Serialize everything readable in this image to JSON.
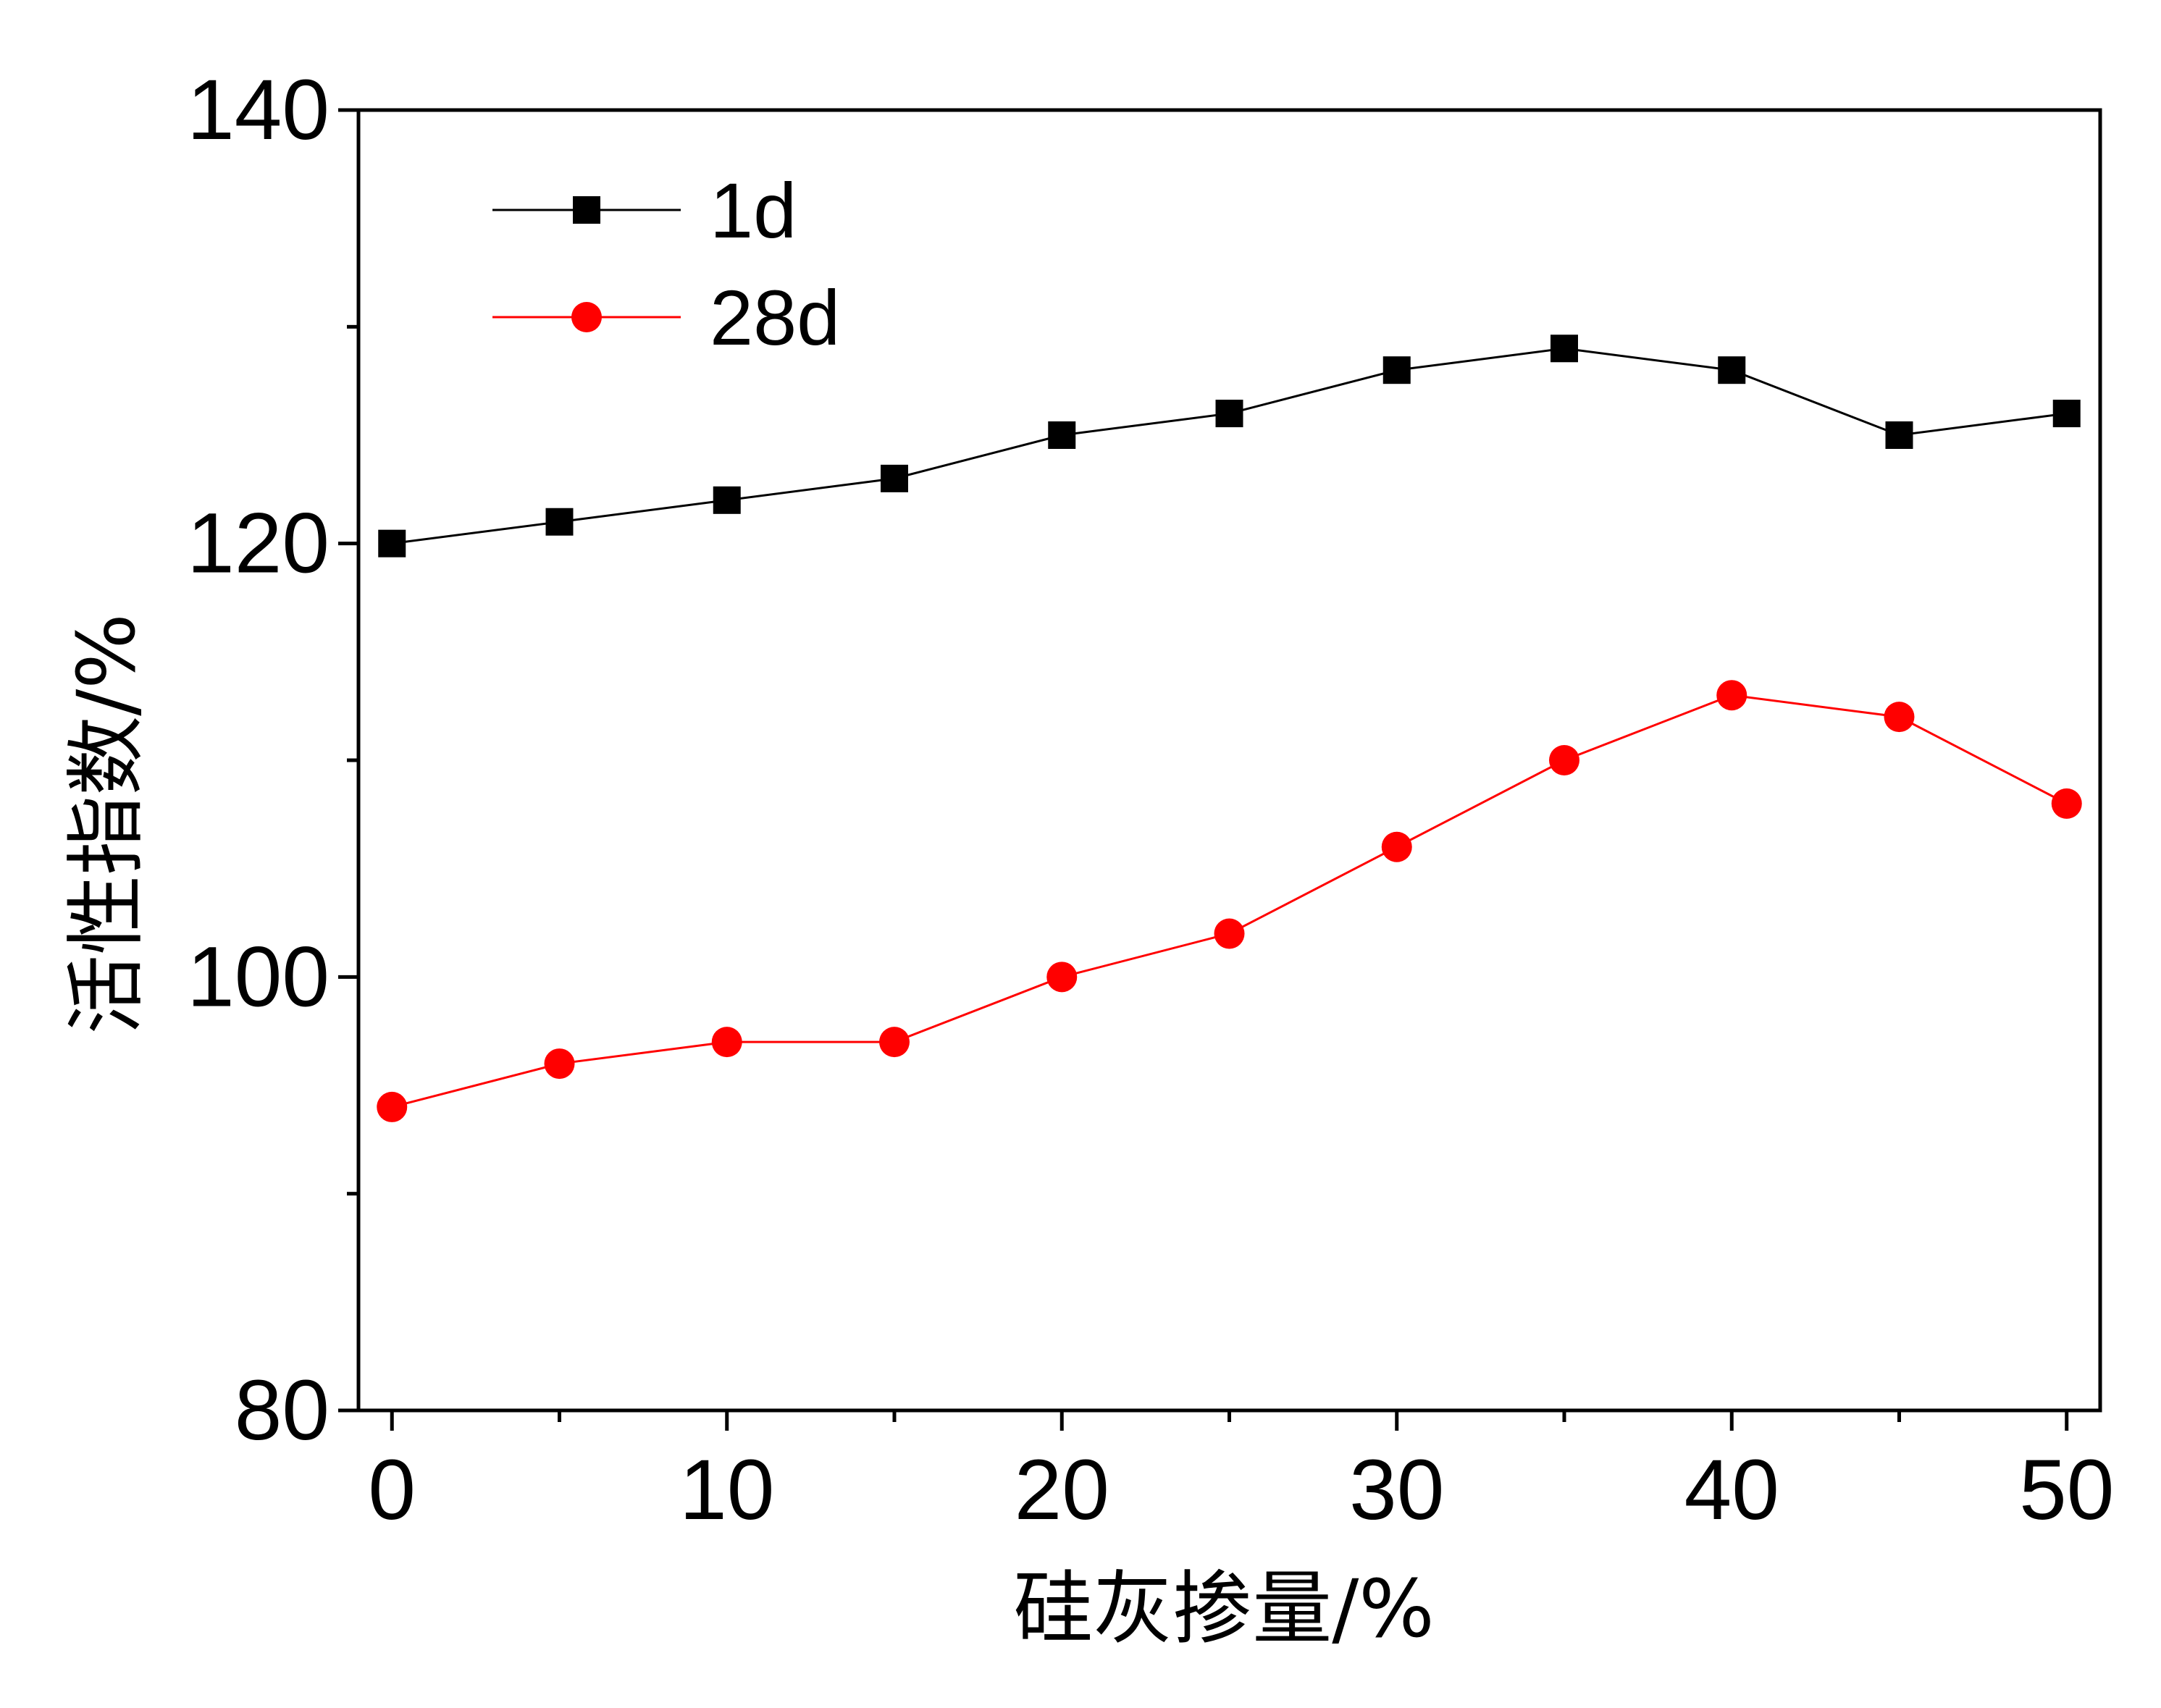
{
  "chart_data": {
    "type": "line",
    "title": "",
    "xlabel": "硅灰掺量/%",
    "ylabel": "活性指数/%",
    "xlim": [
      -1,
      51
    ],
    "ylim": [
      80,
      140
    ],
    "x_ticks": [
      0,
      10,
      20,
      30,
      40,
      50
    ],
    "x_minor_ticks": [
      5,
      15,
      25,
      35,
      45
    ],
    "y_ticks": [
      80,
      100,
      120,
      140
    ],
    "y_minor_ticks": [
      90,
      110,
      130
    ],
    "grid": false,
    "legend_position": "top-left",
    "x": [
      0,
      5,
      10,
      15,
      20,
      25,
      30,
      35,
      40,
      45,
      50
    ],
    "series": [
      {
        "name": "1d",
        "color": "#000000",
        "marker": "square",
        "values": [
          120,
          121,
          122,
          123,
          125,
          126,
          128,
          129,
          128,
          125,
          126
        ]
      },
      {
        "name": "28d",
        "color": "#ff0000",
        "marker": "circle",
        "values": [
          94,
          96,
          97,
          97,
          100,
          102,
          106,
          110,
          113,
          112,
          108
        ]
      }
    ]
  }
}
